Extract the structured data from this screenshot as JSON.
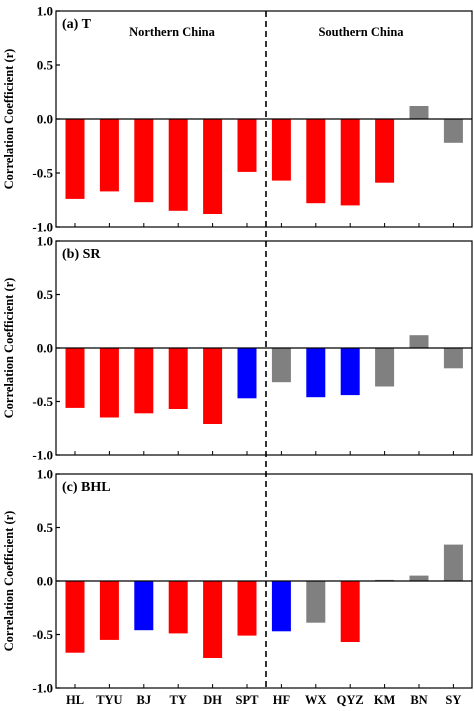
{
  "chart_data": {
    "type": "bar",
    "categories": [
      "HL",
      "TYU",
      "BJ",
      "TY",
      "DH",
      "SPT",
      "HF",
      "WX",
      "QYZ",
      "KM",
      "BN",
      "SY"
    ],
    "region_labels": [
      "Northern China",
      "Southern China"
    ],
    "ylim": [
      -1.0,
      1.0
    ],
    "yticks": [
      "1.0",
      "0.5",
      "0.0",
      "-0.5",
      "-1.0"
    ],
    "ytick_values": [
      1.0,
      0.5,
      0.0,
      -0.5,
      -1.0
    ],
    "colors": {
      "red": "#ff0000",
      "blue": "#0000ff",
      "gray": "#808080"
    },
    "panels": [
      {
        "label": "(a) T",
        "ylabel": "Correlation Coefficient (r)",
        "values": [
          -0.74,
          -0.67,
          -0.77,
          -0.85,
          -0.88,
          -0.49,
          -0.57,
          -0.78,
          -0.8,
          -0.59,
          0.12,
          -0.22
        ],
        "colors": [
          "red",
          "red",
          "red",
          "red",
          "red",
          "red",
          "red",
          "red",
          "red",
          "red",
          "gray",
          "gray"
        ]
      },
      {
        "label": "(b) SR",
        "ylabel": "Correlation Coefficient (r)",
        "values": [
          -0.56,
          -0.65,
          -0.61,
          -0.57,
          -0.71,
          -0.47,
          -0.32,
          -0.46,
          -0.44,
          -0.36,
          0.12,
          -0.19
        ],
        "colors": [
          "red",
          "red",
          "red",
          "red",
          "red",
          "blue",
          "gray",
          "blue",
          "blue",
          "gray",
          "gray",
          "gray"
        ]
      },
      {
        "label": "(c) BHL",
        "ylabel": "Correlation Coefficient (r)",
        "values": [
          -0.67,
          -0.55,
          -0.46,
          -0.49,
          -0.72,
          -0.51,
          -0.47,
          -0.39,
          -0.57,
          0.01,
          0.05,
          0.34
        ],
        "colors": [
          "red",
          "red",
          "blue",
          "red",
          "red",
          "red",
          "blue",
          "gray",
          "red",
          "gray",
          "gray",
          "gray"
        ]
      }
    ]
  }
}
